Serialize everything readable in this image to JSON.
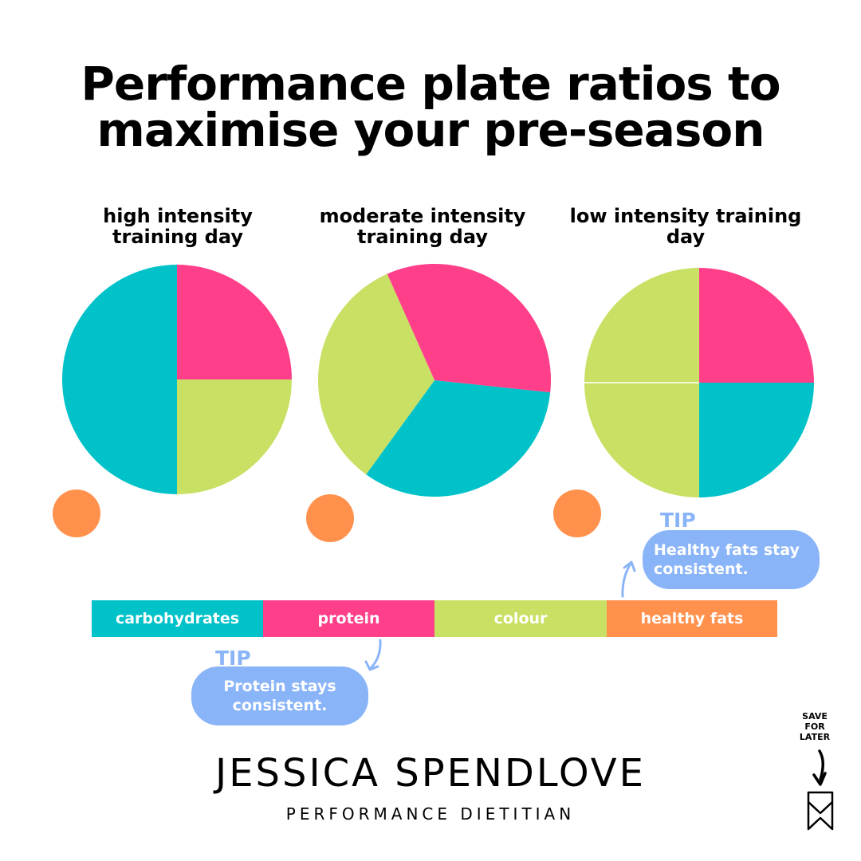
{
  "title": {
    "line1": "Performance plate ratios to",
    "line2": "maximise your pre-season"
  },
  "colors": {
    "carbohydrates": "#00c2c8",
    "protein": "#ff3f8a",
    "colour": "#c8e064",
    "healthy_fats": "#ff914d",
    "tip": "#8ab4f8"
  },
  "chart_data": [
    {
      "type": "pie",
      "title": "high intensity training day",
      "labels": [
        "carbohydrates",
        "protein",
        "colour"
      ],
      "values": [
        50,
        25,
        25
      ],
      "side_item": "healthy fats"
    },
    {
      "type": "pie",
      "title": "moderate intensity training day",
      "labels": [
        "carbohydrates",
        "protein",
        "colour"
      ],
      "values": [
        33.3,
        33.3,
        33.3
      ],
      "side_item": "healthy fats"
    },
    {
      "type": "pie",
      "title": "low intensity training day",
      "labels": [
        "carbohydrates",
        "protein",
        "colour"
      ],
      "values": [
        25,
        25,
        50
      ],
      "side_item": "healthy fats"
    }
  ],
  "legend": [
    {
      "label": "carbohydrates",
      "color": "#00c2c8"
    },
    {
      "label": "protein",
      "color": "#ff3f8a"
    },
    {
      "label": "colour",
      "color": "#c8e064"
    },
    {
      "label": "healthy fats",
      "color": "#ff914d"
    }
  ],
  "tips": {
    "protein": {
      "label": "TIP",
      "text": "Protein stays consistent."
    },
    "fats": {
      "label": "TIP",
      "text": "Healthy fats stay consistent."
    }
  },
  "brand": {
    "name": "JESSICA SPENDLOVE",
    "subtitle": "PERFORMANCE DIETITIAN"
  },
  "save": {
    "text": "SAVE FOR LATER"
  }
}
